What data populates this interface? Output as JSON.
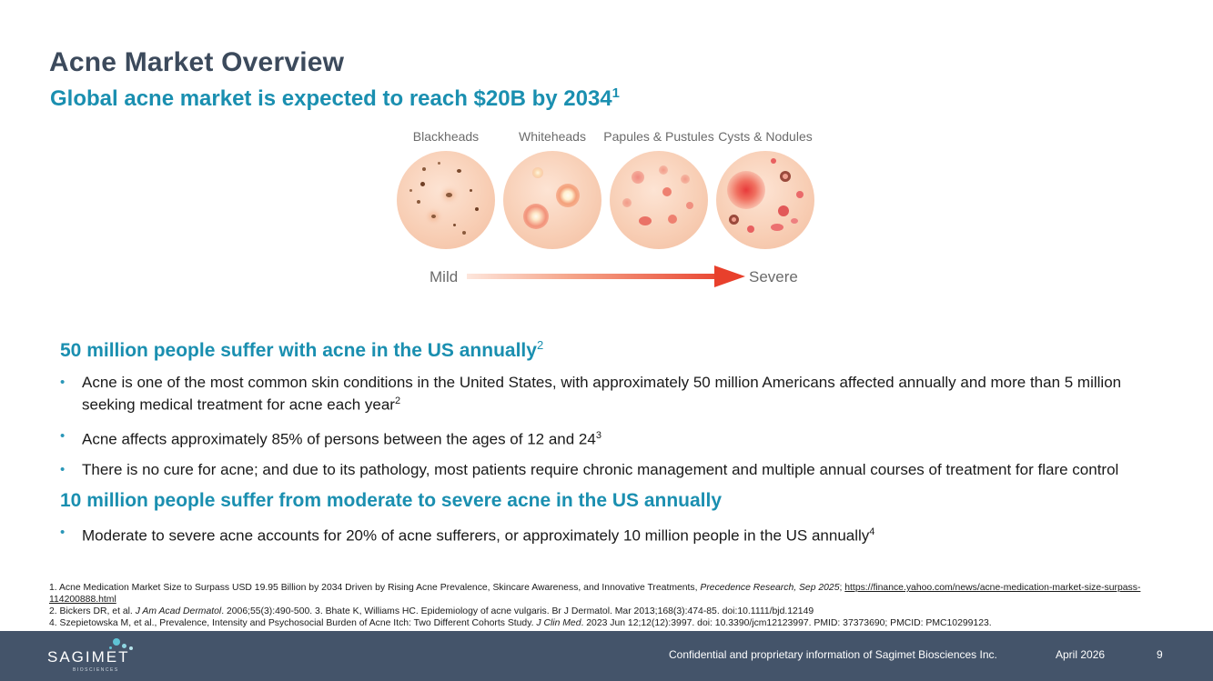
{
  "header": {
    "title": "Acne Market Overview",
    "subtitle": "Global acne market is expected to reach $20B by 2034",
    "subtitle_ref": "1"
  },
  "figure": {
    "stages": [
      {
        "label": "Blackheads"
      },
      {
        "label": "Whiteheads"
      },
      {
        "label": "Papules & Pustules"
      },
      {
        "label": "Cysts & Nodules"
      }
    ],
    "scale_min": "Mild",
    "scale_max": "Severe"
  },
  "section1": {
    "heading": "50 million people suffer with acne in the US annually",
    "heading_ref": "2",
    "bullets": [
      {
        "text": "Acne is one of the most common skin conditions in the United States, with approximately 50 million Americans affected annually and more than 5 million seeking medical treatment for acne each year",
        "ref": "2"
      },
      {
        "text": "Acne affects approximately 85% of persons between the ages of 12 and 24",
        "ref": "3"
      },
      {
        "text": "There is no cure for acne; and due to its pathology, most patients require chronic management and multiple annual courses of treatment for flare control",
        "ref": ""
      }
    ]
  },
  "section2": {
    "heading": "10 million people suffer from moderate to severe acne in the US annually",
    "bullets": [
      {
        "text": "Moderate to severe acne accounts for 20% of acne sufferers, or approximately 10 million people in the US annually",
        "ref": "4"
      }
    ]
  },
  "references": {
    "r1_text": "1. Acne Medication Market Size to Surpass USD 19.95 Billion by 2034 Driven by Rising Acne Prevalence, Skincare Awareness, and Innovative Treatments, ",
    "r1_source": "Precedence Research, Sep 2025",
    "r1_sep": "; ",
    "r1_link": "https://finance.yahoo.com/news/acne-medication-market-size-surpass-114200888.html",
    "r2_a": "2. Bickers DR, et al. ",
    "r2_journal": "J Am Acad Dermatol",
    "r2_b": ". 2006;55(3):490-500. 3. Bhate K, Williams HC. Epidemiology of acne vulgaris. Br J Dermatol. Mar 2013;168(3):474-85. doi:10.1111/bjd.12149",
    "r4_a": "4. Szepietowska M, et al., Prevalence, Intensity and Psychosocial Burden of Acne Itch: Two Different Cohorts Study. ",
    "r4_journal": "J Clin Med",
    "r4_b": ". 2023 Jun 12;12(12):3997. doi: 10.3390/jcm12123997. PMID: 37373690; PMCID: PMC10299123."
  },
  "footer": {
    "logo_text": "SAGIMET",
    "logo_sub": "BIOSCIENCES",
    "confidential": "Confidential and proprietary information of Sagimet Biosciences Inc.",
    "date": "April 2026",
    "page": "9"
  },
  "colors": {
    "title": "#3c4a5c",
    "accent": "#1a8fb0",
    "footer_bg": "#44546a",
    "severe_red": "#e8402c"
  }
}
